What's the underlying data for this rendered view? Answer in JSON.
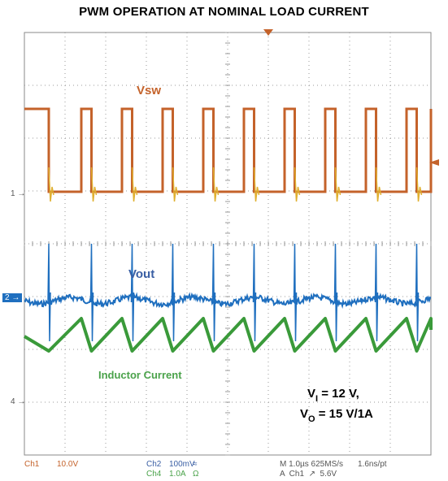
{
  "title": "PWM OPERATION AT NOMINAL LOAD CURRENT",
  "chart_data": {
    "type": "line",
    "title": "PWM OPERATION AT NOMINAL LOAD CURRENT",
    "xlabel": "",
    "ylabel": "",
    "x_divisions": 10,
    "y_divisions": 8,
    "time_per_division_us": 1.0,
    "grid": true,
    "switching_period_us": 1.0,
    "series": [
      {
        "name": "Vsw",
        "channel": "Ch1",
        "scale": "10.0V",
        "color": "#c4622a",
        "high_v": 15.6,
        "low_v": 0.0,
        "low_intervals_us": [
          [
            0.6,
            1.4
          ],
          [
            1.65,
            2.4
          ],
          [
            2.65,
            3.4
          ],
          [
            3.65,
            4.4
          ],
          [
            4.65,
            5.4
          ],
          [
            5.65,
            6.4
          ],
          [
            6.65,
            7.4
          ],
          [
            7.65,
            8.4
          ],
          [
            8.65,
            9.4
          ],
          [
            9.65,
            10.0
          ]
        ]
      },
      {
        "name": "Vout",
        "channel": "Ch2",
        "scale": "100mV",
        "color": "#1f6fbf",
        "note": "ripple with spikes at each switching edge"
      },
      {
        "name": "Inductor Current",
        "channel": "Ch4",
        "scale": "1.0A",
        "color": "#3a9a3a",
        "shape": "triangle",
        "min_a": 0.6,
        "max_a": 1.4
      }
    ],
    "annotations": [
      "Vsw",
      "Vout",
      "Inductor Current"
    ]
  },
  "labels": {
    "vsw": "Vsw",
    "vout": "Vout",
    "inductor": "Inductor Current",
    "vi_main": "V",
    "vi_sub": "I",
    "vi_rest": " = 12 V,",
    "vo_main": "V",
    "vo_sub": "O",
    "vo_rest": " = 15 V/1A"
  },
  "markers": {
    "ch1": "1",
    "ch2": "2",
    "ch4": "4"
  },
  "status": {
    "ch1": "Ch1",
    "ch1_scale": "10.0V",
    "ch2": "Ch2",
    "ch2_scale": "100mV",
    "ch2_coupling": "≈",
    "ch4": "Ch4",
    "ch4_scale": "1.0A",
    "ch4_coupling": "Ω",
    "timebase": "M 1.0µs 625MS/s",
    "trigger": "A  Ch1  ↗  5.6V",
    "resolution": "1.6ns/pt"
  },
  "colors": {
    "ch1": "#c4622a",
    "ch2": "#1f6fbf",
    "ch4": "#3a9a3a",
    "grid": "#9a9a9a"
  }
}
